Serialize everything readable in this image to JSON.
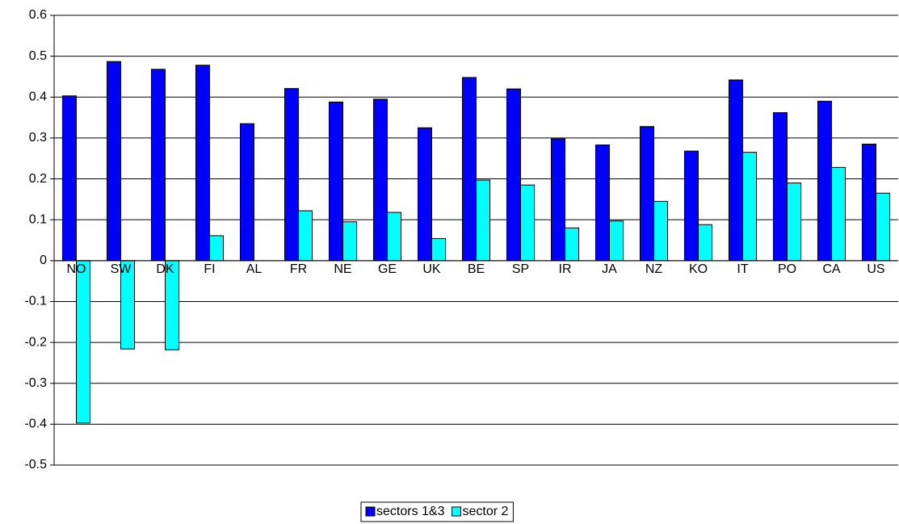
{
  "chart_data": {
    "type": "bar",
    "categories": [
      "NO",
      "SW",
      "DK",
      "FI",
      "AL",
      "FR",
      "NE",
      "GE",
      "UK",
      "BE",
      "SP",
      "IR",
      "JA",
      "NZ",
      "KO",
      "IT",
      "PO",
      "CA",
      "US"
    ],
    "series": [
      {
        "name": "sectors 1&3",
        "color": "#0000ff",
        "values": [
          0.403,
          0.487,
          0.468,
          0.478,
          0.335,
          0.421,
          0.388,
          0.395,
          0.325,
          0.448,
          0.42,
          0.298,
          0.283,
          0.328,
          0.268,
          0.442,
          0.362,
          0.39,
          0.285
        ]
      },
      {
        "name": "sector 2",
        "color": "#00ffff",
        "values": [
          -0.397,
          -0.216,
          -0.218,
          0.061,
          null,
          0.122,
          0.095,
          0.118,
          0.054,
          0.197,
          0.185,
          0.08,
          0.097,
          0.145,
          0.088,
          0.265,
          0.19,
          0.228,
          0.165
        ]
      }
    ],
    "ylim": [
      -0.5,
      0.6
    ],
    "yticks": [
      -0.5,
      -0.4,
      -0.3,
      -0.2,
      -0.1,
      0,
      0.1,
      0.2,
      0.3,
      0.4,
      0.5,
      0.6
    ],
    "grid": true,
    "legend": "bottom"
  }
}
